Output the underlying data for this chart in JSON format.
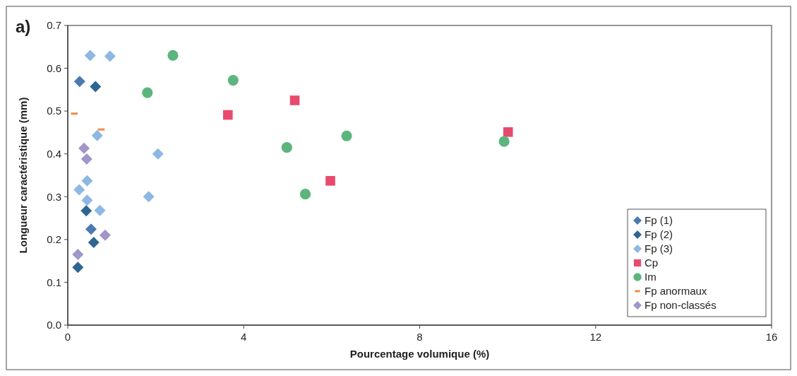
{
  "chart_data": {
    "type": "scatter",
    "xlabel": "Pourcentage volumique (%)",
    "ylabel": "Longueur caractéristique (mm)",
    "annotations": [
      "a)"
    ],
    "xlim": [
      0,
      16
    ],
    "xticks": [
      0,
      4,
      8,
      12,
      16
    ],
    "ylim": [
      0,
      0.7
    ],
    "yticks": [
      {
        "value": 0,
        "label": "0.0"
      },
      0.1,
      0.2,
      0.3,
      0.4,
      0.5,
      0.6,
      0.7
    ],
    "grid": false,
    "legend": "bottom right",
    "series": [
      {
        "name": "Fp (1)",
        "color": "#4a7ab0",
        "marker": "diamond",
        "x": [
          0.27,
          0.53
        ],
        "values": [
          0.569,
          0.224
        ]
      },
      {
        "name": "Fp (2)",
        "color": "#2e6691",
        "marker": "diamond",
        "x": [
          0.63,
          0.42,
          0.59,
          0.23
        ],
        "values": [
          0.557,
          0.267,
          0.193,
          0.135
        ]
      },
      {
        "name": "Fp (3)",
        "color": "#8db8e3",
        "marker": "diamond",
        "x": [
          0.51,
          0.96,
          0.67,
          2.05,
          0.44,
          0.26,
          0.44,
          0.73,
          1.84
        ],
        "values": [
          0.63,
          0.628,
          0.443,
          0.4,
          0.337,
          0.316,
          0.292,
          0.268,
          0.3
        ]
      },
      {
        "name": "Cp",
        "color": "#e84a6e",
        "marker": "square",
        "x": [
          3.64,
          5.16,
          5.97,
          10.01
        ],
        "values": [
          0.491,
          0.525,
          0.337,
          0.451
        ]
      },
      {
        "name": "Im",
        "color": "#5db57e",
        "marker": "circle",
        "x": [
          2.39,
          1.81,
          3.76,
          4.98,
          6.34,
          5.4,
          9.92
        ],
        "values": [
          0.63,
          0.543,
          0.572,
          0.415,
          0.442,
          0.306,
          0.429
        ]
      },
      {
        "name": "Fp anormaux",
        "color": "#f08a4b",
        "x": [
          0.15,
          0.76
        ],
        "values": [
          0.494,
          0.457
        ]
      },
      {
        "name": "Fp non-classés",
        "color": "#a195c9",
        "marker": "diamond",
        "x": [
          0.37,
          0.43,
          0.85,
          0.23
        ],
        "values": [
          0.413,
          0.388,
          0.21,
          0.165
        ]
      }
    ]
  }
}
